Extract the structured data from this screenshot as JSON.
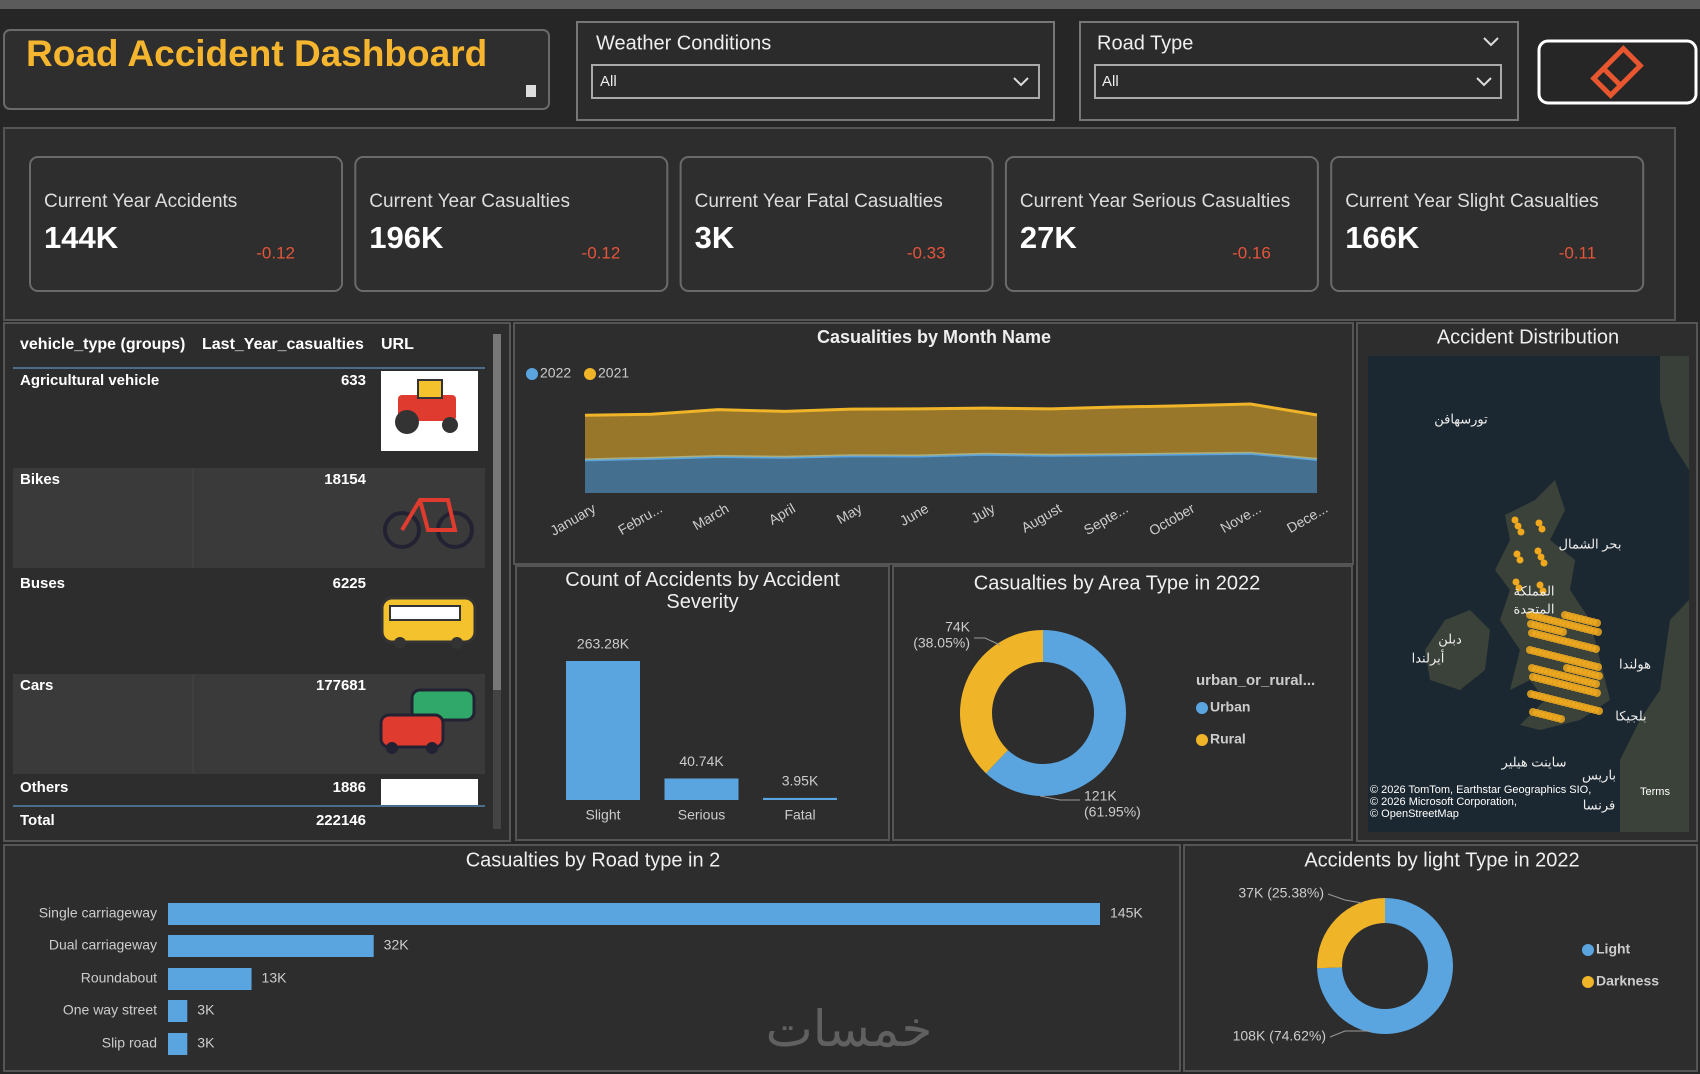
{
  "header": {
    "title": "Road Accident Dashboard"
  },
  "filters": [
    {
      "label": "Weather Conditions",
      "value": "All"
    },
    {
      "label": "Road Type",
      "value": "All"
    }
  ],
  "kpis": [
    {
      "label": "Current Year Accidents",
      "value": "144K",
      "change": -0.12
    },
    {
      "label": "Current Year Casualties",
      "value": "196K",
      "change": -0.12
    },
    {
      "label": "Current Year Fatal Casualties",
      "value": "3K",
      "change": -0.33
    },
    {
      "label": "Current Year Serious Casualties",
      "value": "27K",
      "change": -0.16
    },
    {
      "label": "Current Year Slight Casualties",
      "value": "166K",
      "change": -0.11
    }
  ],
  "table": {
    "columns": [
      "vehicle_type (groups)",
      "Last_Year_casualties",
      "URL"
    ],
    "rows": [
      [
        "Agricultural vehicle",
        633
      ],
      [
        "Bikes",
        18154
      ],
      [
        "Buses",
        6225
      ],
      [
        "Cars",
        177681
      ],
      [
        "Others",
        1886
      ]
    ],
    "total": [
      "Total",
      222146
    ]
  },
  "map": {
    "title": "Accident Distribution",
    "labels": [
      "تورسهافن",
      "بحر الشمال",
      "المملكة",
      "المتحدة",
      "دبلن",
      "أيرلندا",
      "هولندا",
      "بلجيكا",
      "ساينت هيلير",
      "باريس",
      "فرنسا"
    ],
    "attribution": [
      "© 2026 TomTom, Earthstar Geographics SIO,",
      "© 2026 Microsoft Corporation,",
      "© OpenStreetMap"
    ],
    "terms": "Terms"
  },
  "watermark": "خمسات",
  "chart_data": [
    {
      "type": "area",
      "title": "Casualities by Month Name",
      "stacked": true,
      "categories": [
        "January",
        "Febru...",
        "March",
        "April",
        "May",
        "June",
        "July",
        "August",
        "Septe...",
        "October",
        "Nove...",
        "Dece..."
      ],
      "series": [
        {
          "name": "2022",
          "color": "#5aa5e0",
          "values": [
            13000,
            13600,
            14300,
            14000,
            14600,
            14500,
            15200,
            14800,
            15000,
            15300,
            15600,
            13200
          ]
        },
        {
          "name": "2021",
          "color": "#f0b429",
          "values": [
            17500,
            17300,
            18400,
            18000,
            18300,
            18500,
            18100,
            18200,
            18700,
            18900,
            19300,
            17400
          ]
        }
      ]
    },
    {
      "type": "bar",
      "title": "Count of Accidents by Accident Severity",
      "categories": [
        "Slight",
        "Serious",
        "Fatal"
      ],
      "values": [
        263280,
        40740,
        3950
      ],
      "value_labels": [
        "263.28K",
        "40.74K",
        "3.95K"
      ],
      "color": "#5aa5e0"
    },
    {
      "type": "donut",
      "title": "Casualties by Area Type in 2022",
      "legend_title": "urban_or_rural...",
      "categories": [
        "Urban",
        "Rural"
      ],
      "values": [
        121000,
        74000
      ],
      "value_labels": [
        "121K",
        "74K"
      ],
      "percent_labels": [
        "(61.95%)",
        "(38.05%)"
      ],
      "colors": [
        "#5aa5e0",
        "#f0b429"
      ]
    },
    {
      "type": "hbar",
      "title": "Casualties by Road type in 2",
      "categories": [
        "Single carriageway",
        "Dual carriageway",
        "Roundabout",
        "One way street",
        "Slip road"
      ],
      "values": [
        145000,
        32000,
        13000,
        3000,
        3000
      ],
      "value_labels": [
        "145K",
        "32K",
        "13K",
        "3K",
        "3K"
      ],
      "color": "#5aa5e0"
    },
    {
      "type": "donut",
      "title": "Accidents by light Type in 2022",
      "categories": [
        "Light",
        "Darkness"
      ],
      "values": [
        108000,
        37000
      ],
      "value_labels": [
        "108K (74.62%)",
        "37K (25.38%)"
      ],
      "colors": [
        "#5aa5e0",
        "#f0b429"
      ]
    }
  ]
}
